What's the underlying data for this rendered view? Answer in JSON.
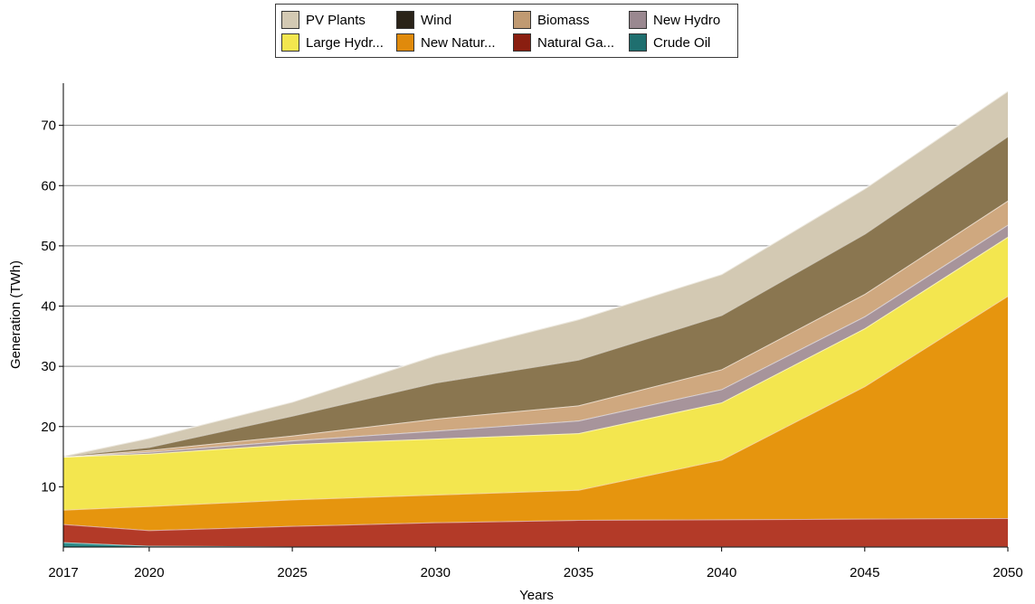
{
  "chart_data": {
    "type": "area",
    "stacked": true,
    "xlabel": "Years",
    "ylabel": "Generation (TWh)",
    "x": [
      2017,
      2020,
      2025,
      2030,
      2035,
      2040,
      2045,
      2050
    ],
    "x_tick_labels": [
      "2017",
      "2020",
      "2025",
      "2030",
      "2035",
      "2040",
      "2045",
      "2050"
    ],
    "y_ticks": [
      10,
      20,
      30,
      40,
      50,
      60,
      70
    ],
    "y_tick_labels": [
      "10",
      "20",
      "30",
      "40",
      "50",
      "60",
      "70"
    ],
    "ylim": [
      0,
      77
    ],
    "grid": "horizontal",
    "legend_position": "top-center",
    "series": [
      {
        "name": "Crude Oil",
        "color": "#2e8c8a",
        "values": [
          0.8,
          0.2,
          0.1,
          0.1,
          0.1,
          0.1,
          0.1,
          0.1
        ]
      },
      {
        "name": "Natural Ga...",
        "color": "#b33a28",
        "values": [
          3.0,
          2.6,
          3.4,
          4.0,
          4.4,
          4.5,
          4.6,
          4.7
        ]
      },
      {
        "name": "New  Natur...",
        "color": "#e6950e",
        "values": [
          2.4,
          4.0,
          4.4,
          4.6,
          5.0,
          9.9,
          22.0,
          36.9
        ]
      },
      {
        "name": "Large Hydr...",
        "color": "#f3e64f",
        "values": [
          8.8,
          8.7,
          9.2,
          9.3,
          9.4,
          9.5,
          9.6,
          9.8
        ]
      },
      {
        "name": "New Hydro",
        "color": "#a7949b",
        "values": [
          0.0,
          0.3,
          0.6,
          1.3,
          2.1,
          2.2,
          2.0,
          2.0
        ]
      },
      {
        "name": "Biomass",
        "color": "#cfa87f",
        "values": [
          0.0,
          0.3,
          0.8,
          2.0,
          2.5,
          3.3,
          3.7,
          4.0
        ]
      },
      {
        "name": "Wind",
        "color": "#8a7650",
        "values": [
          0.1,
          0.5,
          3.3,
          6.0,
          7.6,
          9.0,
          10.0,
          10.7
        ]
      },
      {
        "name": "PV Plants",
        "color": "#d3c9b3",
        "values": [
          0.0,
          1.5,
          2.3,
          4.5,
          6.7,
          6.8,
          7.5,
          7.5
        ]
      }
    ]
  },
  "legend": {
    "items": [
      {
        "label": "PV Plants",
        "color": "#d3c9b3"
      },
      {
        "label": "Wind",
        "color": "#2a2318"
      },
      {
        "label": "Biomass",
        "color": "#c09a72"
      },
      {
        "label": "New Hydro",
        "color": "#9a8890"
      },
      {
        "label": "Large Hydr...",
        "color": "#f3e64f"
      },
      {
        "label": "New  Natur...",
        "color": "#e08a0c"
      },
      {
        "label": "Natural Ga...",
        "color": "#8a1e10"
      },
      {
        "label": "Crude Oil",
        "color": "#1f6f6f"
      }
    ]
  }
}
